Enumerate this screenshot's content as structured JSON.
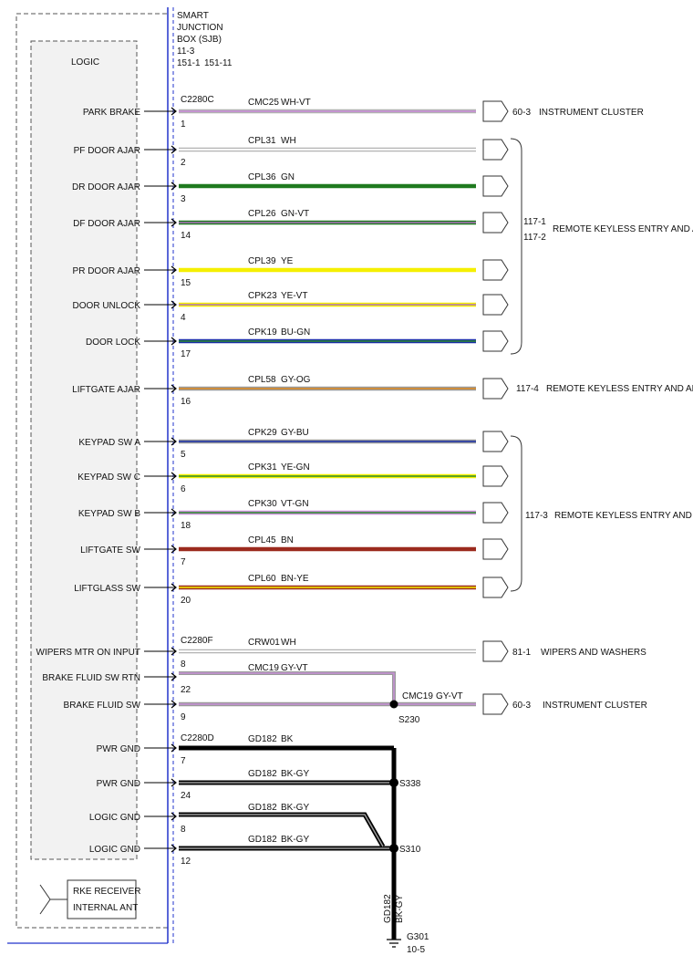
{
  "module": {
    "title_lines": [
      "SMART",
      "JUNCTION",
      "BOX (SJB)",
      "11-3"
    ],
    "pages_a": "151-1",
    "pages_b": "151-11",
    "logic_label": "LOGIC",
    "rke_label_lines": [
      "RKE RECEIVER",
      "INTERNAL ANT"
    ]
  },
  "connectors": [
    "C2280C",
    "C2280F",
    "C2280D"
  ],
  "signals": [
    {
      "label": "PARK BRAKE",
      "pin": "1",
      "circuit": "CMC25",
      "color_code": "WH-VT",
      "color": "#ffffff",
      "stripe": "#b070c0"
    },
    {
      "label": "PF DOOR AJAR",
      "pin": "2",
      "circuit": "CPL31",
      "color_code": "WH",
      "color": "#ffffff",
      "stripe": ""
    },
    {
      "label": "DR DOOR AJAR",
      "pin": "3",
      "circuit": "CPL36",
      "color_code": "GN",
      "color": "#1f7a1f",
      "stripe": ""
    },
    {
      "label": "DF DOOR AJAR",
      "pin": "14",
      "circuit": "CPL26",
      "color_code": "GN-VT",
      "color": "#1f7a1f",
      "stripe": "#b070c0"
    },
    {
      "label": "PR DOOR AJAR",
      "pin": "15",
      "circuit": "CPL39",
      "color_code": "YE",
      "color": "#f5ef00",
      "stripe": ""
    },
    {
      "label": "DOOR UNLOCK",
      "pin": "4",
      "circuit": "CPK23",
      "color_code": "YE-VT",
      "color": "#f5ef00",
      "stripe": "#b070c0"
    },
    {
      "label": "DOOR LOCK",
      "pin": "17",
      "circuit": "CPK19",
      "color_code": "BU-GN",
      "color": "#1a2fa8",
      "stripe": "#2d8a2d"
    },
    {
      "label": "LIFTGATE AJAR",
      "pin": "16",
      "circuit": "CPL58",
      "color_code": "GY-OG",
      "color": "#9a9a9a",
      "stripe": "#e08a1e"
    },
    {
      "label": "KEYPAD SW A",
      "pin": "5",
      "circuit": "CPK29",
      "color_code": "GY-BU",
      "color": "#9a9a9a",
      "stripe": "#1a2fa8"
    },
    {
      "label": "KEYPAD SW C",
      "pin": "6",
      "circuit": "CPK31",
      "color_code": "YE-GN",
      "color": "#f5ef00",
      "stripe": "#2d8a2d"
    },
    {
      "label": "KEYPAD SW B",
      "pin": "18",
      "circuit": "CPK30",
      "color_code": "VT-GN",
      "color": "#c890d8",
      "stripe": "#2d8a2d"
    },
    {
      "label": "LIFTGATE SW",
      "pin": "7",
      "circuit": "CPL45",
      "color_code": "BN",
      "color": "#9b2a1e",
      "stripe": ""
    },
    {
      "label": "LIFTGLASS SW",
      "pin": "20",
      "circuit": "CPL60",
      "color_code": "BN-YE",
      "color": "#9b2a1e",
      "stripe": "#f5ef00"
    },
    {
      "label": "WIPERS MTR ON INPUT",
      "pin": "8",
      "circuit": "CRW01",
      "color_code": "WH",
      "color": "#ffffff",
      "stripe": ""
    },
    {
      "label": "BRAKE FLUID SW RTN",
      "pin": "22",
      "circuit": "CMC19",
      "color_code": "GY-VT",
      "color": "#9a9a9a",
      "stripe": "#c890d8"
    },
    {
      "label": "BRAKE FLUID SW",
      "pin": "9",
      "circuit": "",
      "color_code": "",
      "color": "#9a9a9a",
      "stripe": "#c890d8"
    },
    {
      "label": "PWR GND",
      "pin": "7",
      "circuit": "GD182",
      "color_code": "BK",
      "color": "#000000",
      "stripe": ""
    },
    {
      "label": "PWR GND",
      "pin": "24",
      "circuit": "GD182",
      "color_code": "BK-GY",
      "color": "#000000",
      "stripe": "#9a9a9a"
    },
    {
      "label": "LOGIC GND",
      "pin": "8",
      "circuit": "GD182",
      "color_code": "BK-GY",
      "color": "#000000",
      "stripe": "#9a9a9a"
    },
    {
      "label": "LOGIC GND",
      "pin": "12",
      "circuit": "GD182",
      "color_code": "BK-GY",
      "color": "#000000",
      "stripe": "#9a9a9a"
    }
  ],
  "destinations": [
    {
      "page": "60-3",
      "label": "INSTRUMENT CLUSTER"
    },
    {
      "page_lines": [
        "117-1",
        "117-2"
      ],
      "label": "REMOTE KEYLESS ENTRY AND ALARM"
    },
    {
      "page": "117-4",
      "label": "REMOTE KEYLESS ENTRY AND ALARM"
    },
    {
      "page": "117-3",
      "label": "REMOTE KEYLESS ENTRY AND ALARM"
    },
    {
      "page": "81-1",
      "label": "WIPERS AND WASHERS"
    },
    {
      "page": "60-3",
      "label": "INSTRUMENT CLUSTER"
    }
  ],
  "splices": [
    "S230",
    "S338",
    "S310"
  ],
  "brake_out": {
    "circuit": "CMC19",
    "color_code": "GY-VT"
  },
  "ground": {
    "circuit": "GD182",
    "color_code": "BK-GY",
    "id": "G301",
    "page": "10-5"
  }
}
